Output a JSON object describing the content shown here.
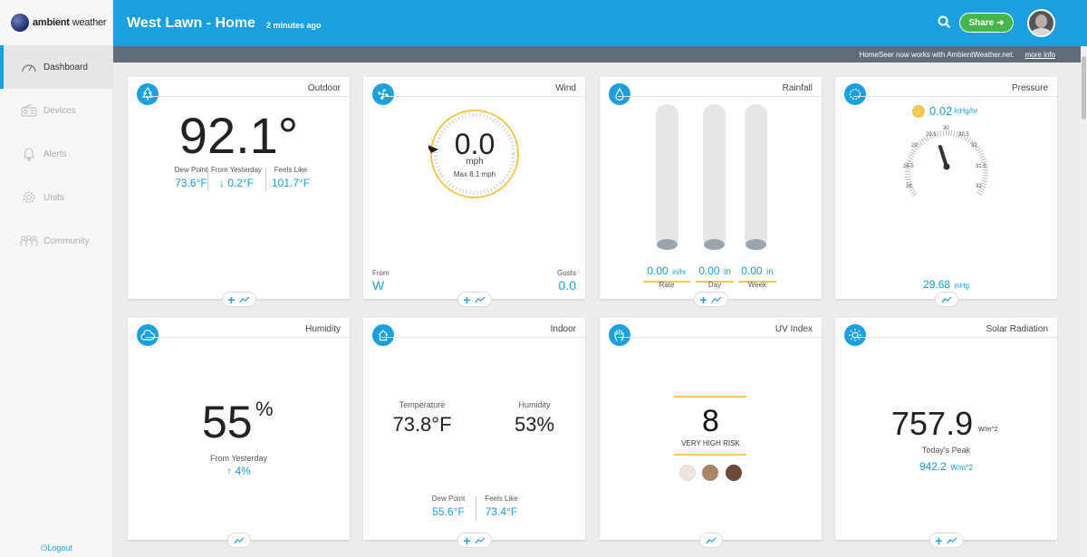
{
  "brand": {
    "name_bold": "ambient",
    "name_light": " weather"
  },
  "sidebar": {
    "items": [
      {
        "label": "Dashboard"
      },
      {
        "label": "Devices"
      },
      {
        "label": "Alerts"
      },
      {
        "label": "Units"
      },
      {
        "label": "Community"
      }
    ],
    "logout": "Logout"
  },
  "header": {
    "title": "West Lawn - Home",
    "updated": "2 minutes ago",
    "share": "Share"
  },
  "notice": {
    "text": "HomeSeer now works with AmbientWeather.net.",
    "link": "more info"
  },
  "cards": {
    "outdoor": {
      "title": "Outdoor",
      "temp": "92.1°",
      "dew_label": "Dew Point",
      "dew_value": "73.6°F",
      "yest_label": "From Yesterday",
      "yest_value": "↓ 0.2°F",
      "feels_label": "Feels Like",
      "feels_value": "101.7°F"
    },
    "wind": {
      "title": "Wind",
      "speed": "0.0",
      "unit": "mph",
      "max": "Max 8.1 mph",
      "from_label": "From",
      "from_value": "W",
      "gusts_label": "Gusts",
      "gusts_value": "0.0"
    },
    "rainfall": {
      "title": "Rainfall",
      "rate": "0.00",
      "rate_unit": "in/hr",
      "rate_label": "Rate",
      "day": "0.00",
      "day_unit": "in",
      "day_label": "Day",
      "week": "0.00",
      "week_unit": "in",
      "week_label": "Week"
    },
    "pressure": {
      "title": "Pressure",
      "trend": "0.02",
      "trend_unit": "inHg/hr",
      "value": "29.68",
      "unit": "inHg",
      "ticks": [
        "28",
        "28.5",
        "29",
        "29.5",
        "30",
        "30.5",
        "31",
        "31.5",
        "32"
      ]
    },
    "humidity": {
      "title": "Humidity",
      "value": "55",
      "unit": "%",
      "yest_label": "From Yesterday",
      "yest_value": "↑ 4%"
    },
    "indoor": {
      "title": "Indoor",
      "temp_label": "Temperature",
      "temp_value": "73.8°F",
      "hum_label": "Humidity",
      "hum_value": "53%",
      "dew_label": "Dew Point",
      "dew_value": "55.6°F",
      "feels_label": "Feels Like",
      "feels_value": "73.4°F"
    },
    "uv": {
      "title": "UV Index",
      "value": "8",
      "risk": "VERY HIGH RISK"
    },
    "solar": {
      "title": "Solar Radiation",
      "value": "757.9",
      "unit": "W/m^2",
      "peak_label": "Today's Peak",
      "peak_value": "942.2",
      "peak_unit": "W/m^2"
    }
  },
  "colors": {
    "accent": "#1aa0e0",
    "share": "#46b649",
    "gauge_ring": "#f2c94c",
    "subbar": "#5f6d7a"
  }
}
